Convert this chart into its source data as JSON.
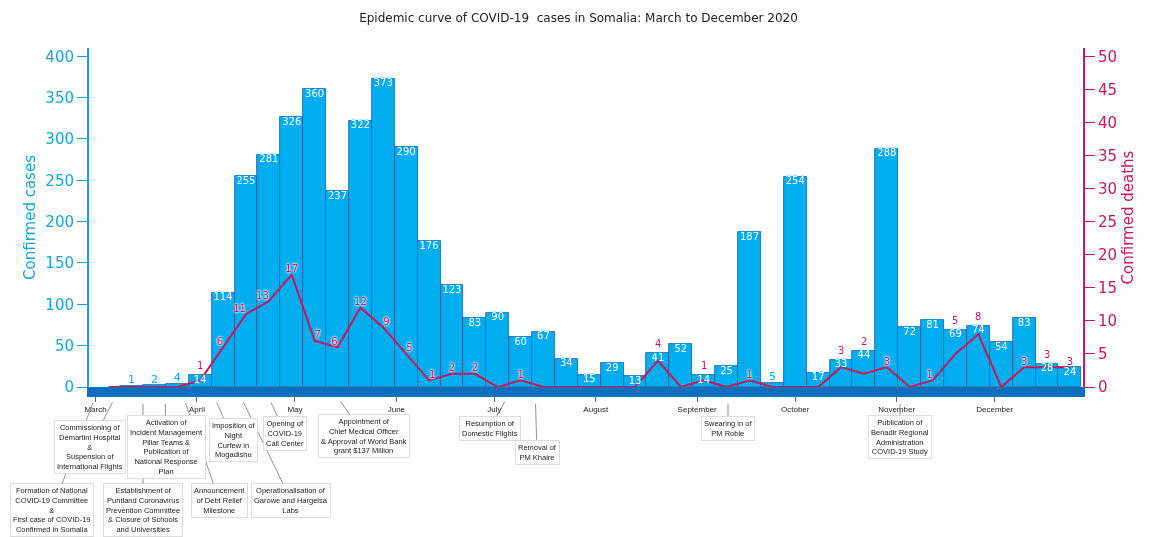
{
  "chart_data": {
    "type": "bar",
    "title": "Epidemic curve of COVID-19  cases in Somalia: March to December 2020",
    "ylabel": "Confirmed cases",
    "y2label": "Confirmed deaths",
    "x": [
      "2020-03-05",
      "2020-03-12",
      "2020-03-19",
      "2020-03-26",
      "2020-04-02",
      "2020-04-09",
      "2020-04-16",
      "2020-04-23",
      "2020-04-30",
      "2020-05-07",
      "2020-05-14",
      "2020-05-21",
      "2020-05-28",
      "2020-06-04",
      "2020-06-11",
      "2020-06-18",
      "2020-06-25",
      "2020-07-02",
      "2020-07-09",
      "2020-07-16",
      "2020-07-23",
      "2020-07-30",
      "2020-08-06",
      "2020-08-13",
      "2020-08-20",
      "2020-08-27",
      "2020-09-03",
      "2020-09-10",
      "2020-09-17",
      "2020-09-24",
      "2020-10-01",
      "2020-10-08",
      "2020-10-15",
      "2020-10-22",
      "2020-10-29",
      "2020-11-05",
      "2020-11-12",
      "2020-11-19",
      "2020-11-26",
      "2020-12-03",
      "2020-12-10",
      "2020-12-17",
      "2020-12-24"
    ],
    "series": [
      {
        "name": null,
        "color": "#00aeef",
        "values": [
          0,
          1,
          2,
          4,
          14,
          114,
          255,
          281,
          326,
          360,
          237,
          322,
          373,
          290,
          176,
          123,
          83,
          90,
          60,
          67,
          34,
          15,
          29,
          13,
          41,
          52,
          14,
          25,
          187,
          5,
          254,
          17,
          33,
          44,
          288,
          72,
          81,
          69,
          74,
          54,
          83,
          28,
          24
        ],
        "value_labels": [
          null,
          "1",
          "2",
          "4",
          "14",
          "114",
          "255",
          "281",
          "326",
          "360",
          "237",
          "322",
          "373",
          "290",
          "176",
          "123",
          "83",
          "90",
          "60",
          "67",
          "34",
          "15",
          "29",
          "13",
          "41",
          "52",
          "14",
          "25",
          "187",
          "5",
          "254",
          "17",
          "33",
          "44",
          "288",
          "72",
          "81",
          "69",
          "74",
          "54",
          "83",
          "28",
          "24"
        ]
      },
      {
        "name": null,
        "type": "line",
        "axis": "y2",
        "color": "#c8175d",
        "values": [
          0,
          0,
          0,
          0,
          1,
          6,
          11,
          13,
          17,
          7,
          6,
          12,
          9,
          5,
          1,
          2,
          2,
          0,
          1,
          0,
          0,
          0,
          0,
          0,
          4,
          0,
          1,
          0,
          1,
          0,
          0,
          0,
          3,
          2,
          3,
          0,
          1,
          5,
          8,
          0,
          3,
          3,
          3
        ],
        "value_labels": [
          null,
          null,
          null,
          null,
          "1",
          "6",
          "11",
          "13",
          "17",
          "7",
          "6",
          "12",
          "9",
          "5",
          "1",
          "2",
          "2",
          null,
          "1",
          null,
          null,
          null,
          null,
          null,
          "4",
          null,
          "1",
          null,
          "1",
          null,
          null,
          null,
          "3",
          "2",
          "3",
          null,
          "1",
          "5",
          "8",
          null,
          "3",
          "3",
          "3"
        ]
      }
    ],
    "xlim": [
      "2020-02-28",
      "2020-12-28"
    ],
    "xticks": [
      {
        "value": "2020-03-01",
        "label": "March"
      },
      {
        "value": "2020-04-01",
        "label": "April"
      },
      {
        "value": "2020-05-01",
        "label": "May"
      },
      {
        "value": "2020-06-01",
        "label": "June"
      },
      {
        "value": "2020-07-01",
        "label": "July"
      },
      {
        "value": "2020-08-01",
        "label": "August"
      },
      {
        "value": "2020-09-01",
        "label": "September"
      },
      {
        "value": "2020-10-01",
        "label": "October"
      },
      {
        "value": "2020-11-01",
        "label": "November"
      },
      {
        "value": "2020-12-01",
        "label": "December"
      }
    ],
    "ylim": [
      0,
      410
    ],
    "yticks": [
      0,
      50,
      100,
      150,
      200,
      250,
      300,
      350,
      400
    ],
    "y2lim": [
      0,
      51.25
    ],
    "y2ticks": [
      0,
      5,
      10,
      15,
      20,
      25,
      30,
      35,
      40,
      45,
      50
    ],
    "annotations": [
      "Formation of National\nCOVID-19 Committee\n&\nFirst case of COVID-19\nConfirmed in Somalia",
      "Commissioning of\nDemartini Hospital\n&\nSuspension of\nInternational Flights",
      "Establishment of\nPuntland Coronavirus\nPrevention Committee\n& Closure of Schools\nand Universities",
      "Activation of\nIncident Management\nPillar Teams &\nPublication of\nNational Response\nPlan",
      "Announcement\nof Debt Relief\nMilestone",
      "Imposition of\nNight\nCurfew in\nMogadishu",
      "Operationalisation of\nGarowe and Hargeisa\nLabs",
      "Opening of\nCOVID-19\nCall Center",
      "Appointment of\nChief Medical Officer\n& Approval of World Bank\ngrant $137 Million",
      "Resumption of\nDomestic Flights",
      "Removal of\nPM Khaire",
      "Swearing in of\nPM Roble",
      "Publication of\nBenadir Regional\nAdministration\nCOVID-19 Study"
    ]
  }
}
